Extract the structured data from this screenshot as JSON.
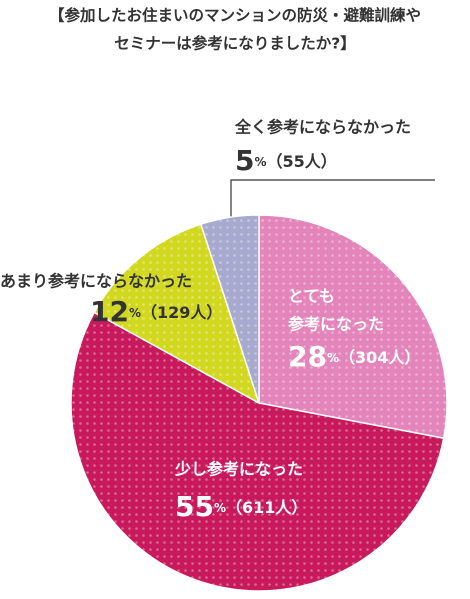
{
  "chart_data": {
    "type": "pie",
    "title": [
      "【参加したお住まいのマンションの防災・避難訓練や",
      "セミナーは参考になりましたか?】"
    ],
    "categories": [
      [
        "とても",
        "参考になった"
      ],
      [
        "少し参考になった"
      ],
      [
        "あまり参考にならなかった"
      ],
      [
        "全く参考にならなかった"
      ]
    ],
    "values": [
      28,
      55,
      12,
      5
    ],
    "unit": "%",
    "count_labels": [
      "（304人）",
      "（611人）",
      "（129人）",
      "（55人）"
    ],
    "colors": [
      "#e385ba",
      "#c7195b",
      "#d2d81f",
      "#a7aace"
    ]
  }
}
